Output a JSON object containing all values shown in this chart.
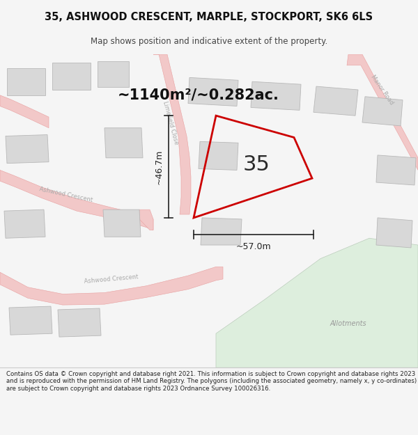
{
  "title_line1": "35, ASHWOOD CRESCENT, MARPLE, STOCKPORT, SK6 6LS",
  "title_line2": "Map shows position and indicative extent of the property.",
  "area_label": "~1140m²/~0.282ac.",
  "property_number": "35",
  "dim_width": "~57.0m",
  "dim_height": "~46.7m",
  "footer_text": "Contains OS data © Crown copyright and database right 2021. This information is subject to Crown copyright and database rights 2023 and is reproduced with the permission of HM Land Registry. The polygons (including the associated geometry, namely x, y co-ordinates) are subject to Crown copyright and database rights 2023 Ordnance Survey 100026316.",
  "bg_color": "#f5f5f5",
  "map_bg": "#f9f9f6",
  "road_fill": "#f2c8c8",
  "road_edge": "#e8a0a0",
  "building_fill": "#d8d8d8",
  "building_edge": "#b8b8b8",
  "plot_color": "#cc0000",
  "dim_color": "#222222",
  "label_color": "#aaaaaa",
  "allot_fill": "#ddeedd",
  "allot_edge": "#bbccbb",
  "allot_label": "#999999",
  "footer_bg": "#ffffff",
  "title_color": "#111111",
  "subtitle_color": "#444444"
}
